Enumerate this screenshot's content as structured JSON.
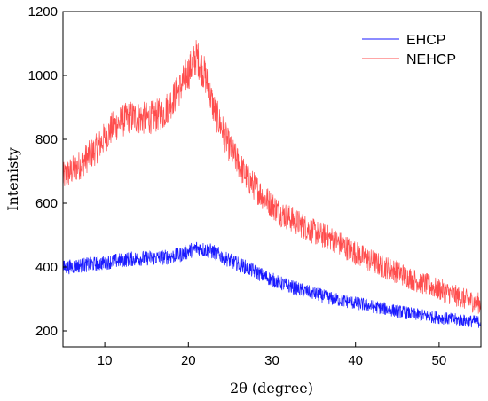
{
  "chart_data": {
    "type": "line",
    "xlabel": "2θ (degree)",
    "ylabel": "Intenisty",
    "xlim": [
      5,
      55
    ],
    "ylim": [
      150,
      1200
    ],
    "xticks": [
      10,
      20,
      30,
      40,
      50
    ],
    "yticks": [
      200,
      400,
      600,
      800,
      1000,
      1200
    ],
    "grid": false,
    "legend_position": "top-right",
    "series": [
      {
        "name": "EHCP",
        "color": "#1a1aff",
        "x": [
          5,
          7,
          9,
          11,
          13,
          15,
          17,
          19,
          21,
          23,
          25,
          27,
          29,
          31,
          33,
          35,
          37,
          39,
          41,
          43,
          45,
          47,
          49,
          51,
          53,
          55
        ],
        "values": [
          398,
          405,
          410,
          418,
          425,
          428,
          430,
          438,
          460,
          448,
          420,
          398,
          372,
          350,
          332,
          318,
          302,
          292,
          282,
          272,
          262,
          252,
          245,
          238,
          232,
          228
        ]
      },
      {
        "name": "NEHCP",
        "color": "#ff4d4d",
        "x": [
          5,
          7,
          9,
          11,
          13,
          15,
          17,
          19,
          20,
          21,
          22,
          23,
          25,
          27,
          29,
          31,
          33,
          35,
          37,
          39,
          41,
          43,
          45,
          47,
          49,
          51,
          53,
          55
        ],
        "values": [
          680,
          720,
          770,
          840,
          870,
          865,
          880,
          960,
          1010,
          1060,
          1000,
          900,
          770,
          680,
          620,
          570,
          540,
          510,
          490,
          460,
          430,
          405,
          385,
          360,
          340,
          320,
          300,
          285
        ]
      }
    ]
  }
}
